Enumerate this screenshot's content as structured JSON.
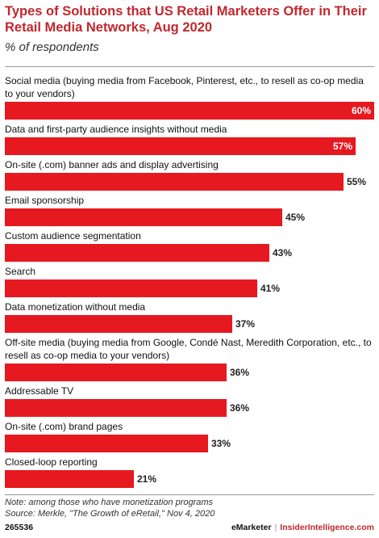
{
  "chart_data": {
    "type": "bar",
    "orientation": "horizontal",
    "title": "Types of Solutions that US Retail Marketers Offer in Their Retail Media Networks, Aug 2020",
    "subtitle": "% of respondents",
    "categories": [
      "Social media (buying media from Facebook, Pinterest, etc., to resell as co-op media to your vendors)",
      "Data and first-party audience insights without media",
      "On-site (.com) banner ads and display advertising",
      "Email sponsorship",
      "Custom audience segmentation",
      "Search",
      "Data monetization without media",
      "Off-site media (buying media from Google, Condé Nast, Meredith Corporation, etc., to resell as co-op media to your vendors)",
      "Addressable TV",
      "On-site (.com) brand pages",
      "Closed-loop reporting"
    ],
    "values": [
      60,
      57,
      55,
      45,
      43,
      41,
      37,
      36,
      36,
      33,
      21
    ],
    "value_labels": [
      "60%",
      "57%",
      "55%",
      "45%",
      "43%",
      "41%",
      "37%",
      "36%",
      "36%",
      "33%",
      "21%"
    ],
    "xlim": [
      0,
      60
    ],
    "bar_color": "#e5191f"
  },
  "note": "Note: among those who have monetization programs",
  "source": "Source: Merkle, \"The Growth of eRetail,\" Nov 4, 2020",
  "footer": {
    "chart_id": "265536",
    "brand_left": "eMarketer",
    "separator": "|",
    "brand_right": "InsiderIntelligence.com"
  },
  "accent_color": "#c1272d"
}
